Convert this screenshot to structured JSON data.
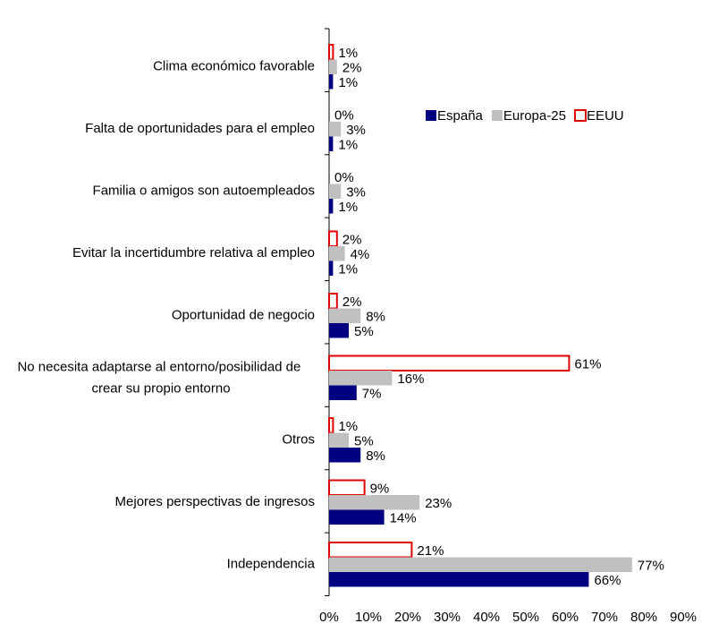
{
  "chart_data": {
    "type": "bar",
    "orientation": "horizontal",
    "categories": [
      "Clima económico favorable",
      "Falta de oportunidades para el empleo",
      "Familia o amigos son autoempleados",
      "Evitar la incertidumbre relativa al empleo",
      "Oportunidad de negocio",
      "No necesita adaptarse al entorno/posibilidad de crear su propio entorno",
      "Otros",
      "Mejores perspectivas de ingresos",
      "Independencia"
    ],
    "series": [
      {
        "name": "España",
        "color": "#000080",
        "values": [
          1,
          1,
          1,
          1,
          5,
          7,
          8,
          14,
          66
        ],
        "value_labels": [
          "1%",
          "1%",
          "1%",
          "1%",
          "5%",
          "7%",
          "8%",
          "14%",
          "66%"
        ]
      },
      {
        "name": "Europa-25",
        "color": "#c0c0c0",
        "values": [
          2,
          3,
          3,
          4,
          8,
          16,
          5,
          23,
          77
        ],
        "value_labels": [
          "2%",
          "3%",
          "3%",
          "4%",
          "8%",
          "16%",
          "5%",
          "23%",
          "77%"
        ]
      },
      {
        "name": "EEUU",
        "color": "#e00000",
        "outline": true,
        "values": [
          1,
          0,
          0,
          2,
          2,
          61,
          1,
          9,
          21
        ],
        "value_labels": [
          "1%",
          "0%",
          "0%",
          "2%",
          "2%",
          "61%",
          "1%",
          "9%",
          "21%"
        ]
      }
    ],
    "xlim": [
      0,
      90
    ],
    "xticks": [
      {
        "value": 0,
        "label": "0%"
      },
      {
        "value": 10,
        "label": "10%"
      },
      {
        "value": 20,
        "label": "20%"
      },
      {
        "value": 30,
        "label": "30%"
      },
      {
        "value": 40,
        "label": "40%"
      },
      {
        "value": 50,
        "label": "50%"
      },
      {
        "value": 60,
        "label": "60%"
      },
      {
        "value": 70,
        "label": "70%"
      },
      {
        "value": 80,
        "label": "80%"
      },
      {
        "value": 90,
        "label": "90%"
      }
    ],
    "grid": false,
    "legend": "upper right"
  }
}
